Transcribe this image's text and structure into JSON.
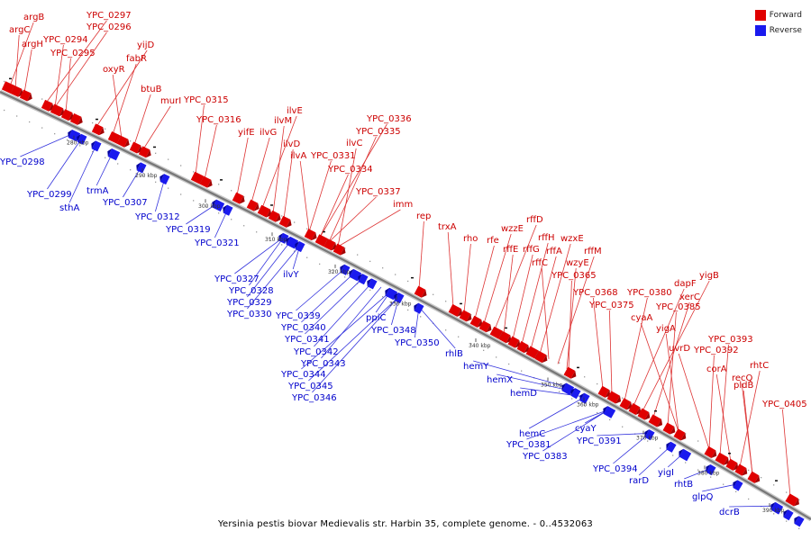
{
  "colors": {
    "forward": "#e00000",
    "reverse": "#1a1aee",
    "forward_text": "#cc0000",
    "reverse_text": "#0000cc"
  },
  "legend": {
    "forward": "Forward",
    "reverse": "Reverse"
  },
  "caption": "Yersinia pestis biovar Medievalis str. Harbin 35, complete genome. - 0..4532063",
  "forward_labels": [
    "argB",
    "argC",
    "argH",
    "YPC_0297",
    "YPC_0296",
    "YPC_0294",
    "YPC_0295",
    "yijD",
    "fabR",
    "oxyR",
    "btuB",
    "murI",
    "YPC_0315",
    "YPC_0316",
    "yifE",
    "ilvG",
    "ilvE",
    "ilvM",
    "ilvD",
    "ilvA",
    "YPC_0336",
    "YPC_0335",
    "ilvC",
    "YPC_0331",
    "YPC_0334",
    "YPC_0337",
    "imm",
    "rep",
    "trxA",
    "rho",
    "rfe",
    "wzzE",
    "rffD",
    "rffE",
    "rffG",
    "rffH",
    "rffA",
    "wzxE",
    "rffC",
    "rffM",
    "wzyE",
    "YPC_0365",
    "YPC_0368",
    "YPC_0375",
    "YPC_0380",
    "dapF",
    "yigB",
    "xerC",
    "YPC_0385",
    "cyaA",
    "yigA",
    "uvrD",
    "YPC_0393",
    "YPC_0392",
    "corA",
    "rhtC",
    "recQ",
    "pldB",
    "YPC_0405"
  ],
  "reverse_labels": [
    "YPC_0298",
    "YPC_0299",
    "sthA",
    "trmA",
    "YPC_0307",
    "YPC_0312",
    "YPC_0319",
    "YPC_0321",
    "YPC_0327",
    "YPC_0328",
    "YPC_0329",
    "YPC_0330",
    "ilvY",
    "YPC_0339",
    "YPC_0340",
    "YPC_0341",
    "YPC_0342",
    "YPC_0343",
    "YPC_0344",
    "YPC_0345",
    "YPC_0346",
    "ppiC",
    "YPC_0348",
    "YPC_0350",
    "rhlB",
    "hemY",
    "hemX",
    "hemD",
    "hemC",
    "YPC_0381",
    "YPC_0383",
    "cyaY",
    "YPC_0391",
    "YPC_0394",
    "rarD",
    "yigI",
    "rhtB",
    "glpQ",
    "dcrB"
  ],
  "ticks": [
    "280 kbp",
    "290 kbp",
    "300 kbp",
    "310 kbp",
    "320 kbp",
    "330 kbp",
    "340 kbp",
    "350 kbp",
    "360 kbp",
    "370 kbp",
    "380 kbp",
    "390 kbp"
  ]
}
